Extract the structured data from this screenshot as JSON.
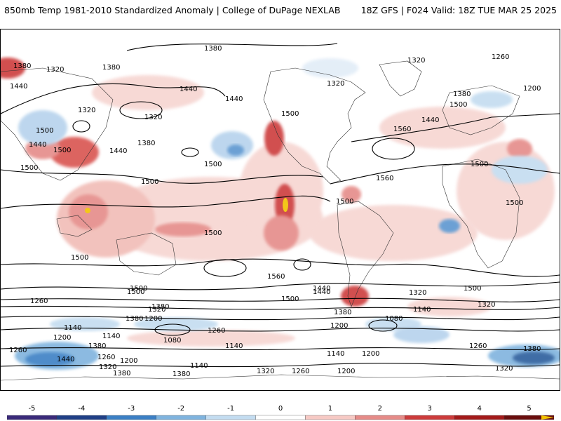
{
  "header": {
    "title": "850mb Temp 1981-2010 Standardized Anomaly | College of DuPage NEXLAB",
    "run_info": "18Z GFS | F024 Valid: 18Z TUE MAR 25 2025"
  },
  "map": {
    "contour_labels": [
      "1380",
      "1320",
      "1260",
      "1200",
      "1500",
      "1440",
      "1380",
      "1320",
      "1440",
      "1500",
      "1500",
      "1380",
      "1440",
      "1320",
      "1320",
      "1380",
      "1500",
      "1440",
      "1500",
      "1500",
      "1440",
      "1500",
      "1560",
      "1500",
      "1500",
      "1500",
      "1380",
      "1260",
      "1320",
      "1200",
      "1380",
      "1500",
      "1560",
      "1500",
      "1500",
      "1440",
      "1320",
      "1380",
      "1260",
      "1140",
      "1080",
      "1200",
      "1140",
      "1200",
      "1260",
      "1380",
      "1320",
      "1140",
      "1380",
      "1440",
      "1260",
      "1140",
      "1080",
      "1200",
      "1320",
      "1380",
      "1440",
      "1500",
      "1140",
      "1260",
      "1380",
      "1320",
      "1200",
      "1140",
      "1320",
      "1260",
      "1200",
      "1380",
      "1440",
      "1320",
      "1500",
      "1560",
      "1500"
    ]
  },
  "colorbar": {
    "ticks": [
      "-5",
      "-4",
      "-3",
      "-2",
      "-1",
      "0",
      "1",
      "2",
      "3",
      "4",
      "5"
    ],
    "colors": {
      "bin_m5": "#3a2a7a",
      "bin_m4": "#1f3f86",
      "bin_m3": "#3b7fc4",
      "bin_m2": "#7fb3de",
      "bin_m1": "#c3dcf0",
      "bin_0": "#ffffff",
      "bin_1": "#f6c9c4",
      "bin_2": "#e58b88",
      "bin_3": "#cc3b3b",
      "bin_4": "#a31a1a",
      "bin_5": "#6a0d0d",
      "cap": "#f2c100"
    }
  }
}
